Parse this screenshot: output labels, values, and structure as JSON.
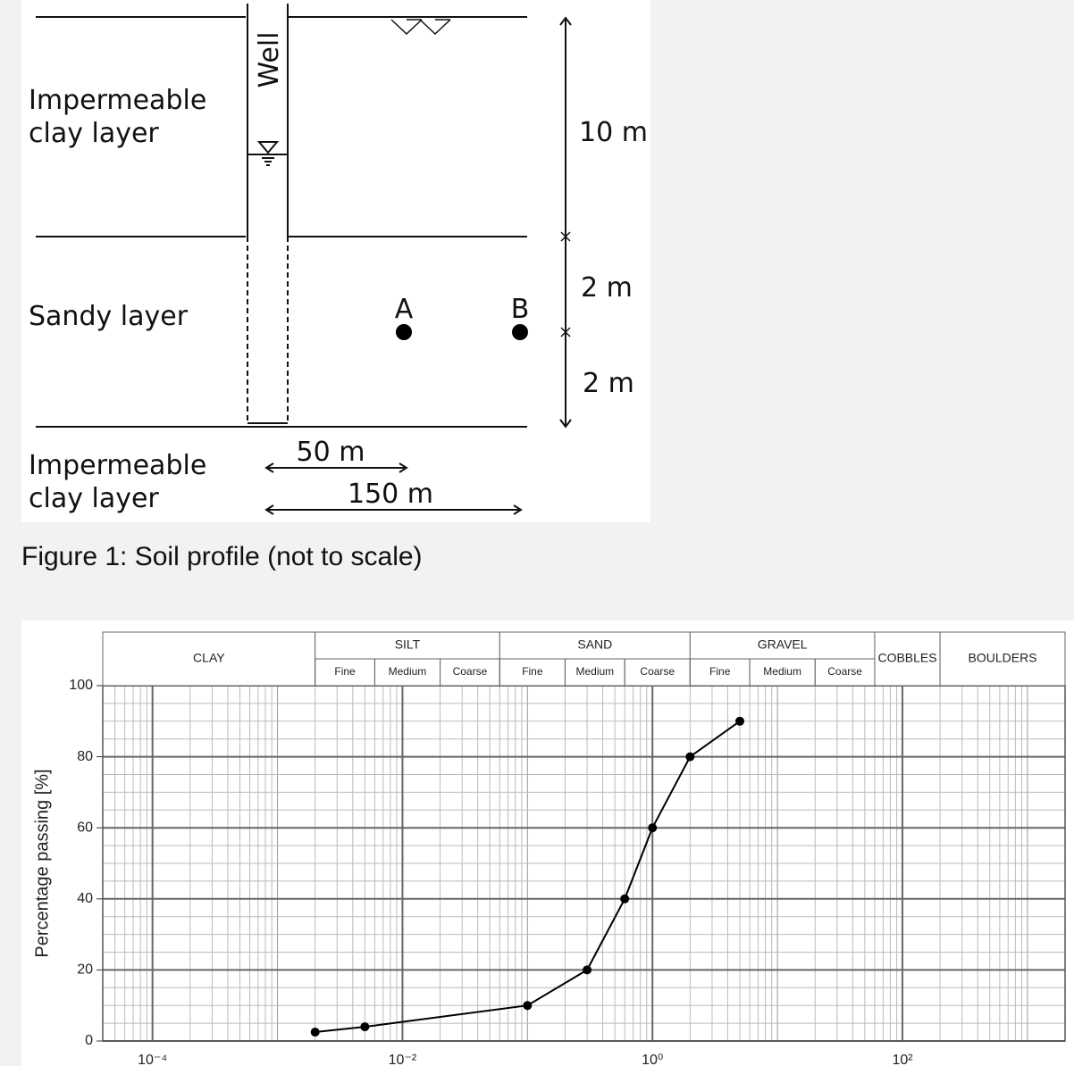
{
  "figure": {
    "top_layer": [
      "Impermeable",
      "clay layer"
    ],
    "well": "Well",
    "middle_layer": "Sandy layer",
    "bottom_layer": [
      "Impermeable",
      "clay layer"
    ],
    "point_a": "A",
    "point_b": "B",
    "depth_clay": "10 m",
    "depth_sand_upper": "2 m",
    "depth_sand_lower": "2 m",
    "distance_a": "50 m",
    "distance_b": "150 m",
    "caption": "Figure 1: Soil profile (not to scale)"
  },
  "chart_data": {
    "type": "line",
    "y_label": "Percentage passing [%]",
    "log_x": true,
    "x": [
      0.002,
      0.005,
      0.1,
      0.3,
      0.6,
      1,
      2,
      5
    ],
    "values": [
      2.5,
      4,
      10,
      20,
      40,
      60,
      80,
      90
    ],
    "color": "#000000",
    "xlim": [
      4e-05,
      2000
    ],
    "xticks": [
      {
        "value": 0.0001,
        "label": "10⁻⁴"
      },
      {
        "value": 0.01,
        "label": "10⁻²"
      },
      {
        "value": 1,
        "label": "10⁰"
      },
      {
        "value": 100,
        "label": "10²"
      }
    ],
    "ylim": [
      0,
      100
    ],
    "yticks": [
      0,
      20,
      40,
      60,
      80,
      100
    ],
    "grid": true,
    "classes": [
      {
        "name": "CLAY",
        "range": [
          4e-05,
          0.002
        ]
      },
      {
        "name": "SILT",
        "range": [
          0.002,
          0.06
        ],
        "sub": [
          {
            "name": "Fine",
            "range": [
              0.002,
              0.006
            ]
          },
          {
            "name": "Medium",
            "range": [
              0.006,
              0.02
            ]
          },
          {
            "name": "Coarse",
            "range": [
              0.02,
              0.06
            ]
          }
        ]
      },
      {
        "name": "SAND",
        "range": [
          0.06,
          2
        ],
        "sub": [
          {
            "name": "Fine",
            "range": [
              0.06,
              0.2
            ]
          },
          {
            "name": "Medium",
            "range": [
              0.2,
              0.6
            ]
          },
          {
            "name": "Coarse",
            "range": [
              0.6,
              2
            ]
          }
        ]
      },
      {
        "name": "GRAVEL",
        "range": [
          2,
          60
        ],
        "sub": [
          {
            "name": "Fine",
            "range": [
              2,
              6
            ]
          },
          {
            "name": "Medium",
            "range": [
              6,
              20
            ]
          },
          {
            "name": "Coarse",
            "range": [
              20,
              60
            ]
          }
        ]
      },
      {
        "name": "COBBLES",
        "range": [
          60,
          200
        ]
      },
      {
        "name": "BOULDERS",
        "range": [
          200,
          2000
        ]
      }
    ]
  }
}
